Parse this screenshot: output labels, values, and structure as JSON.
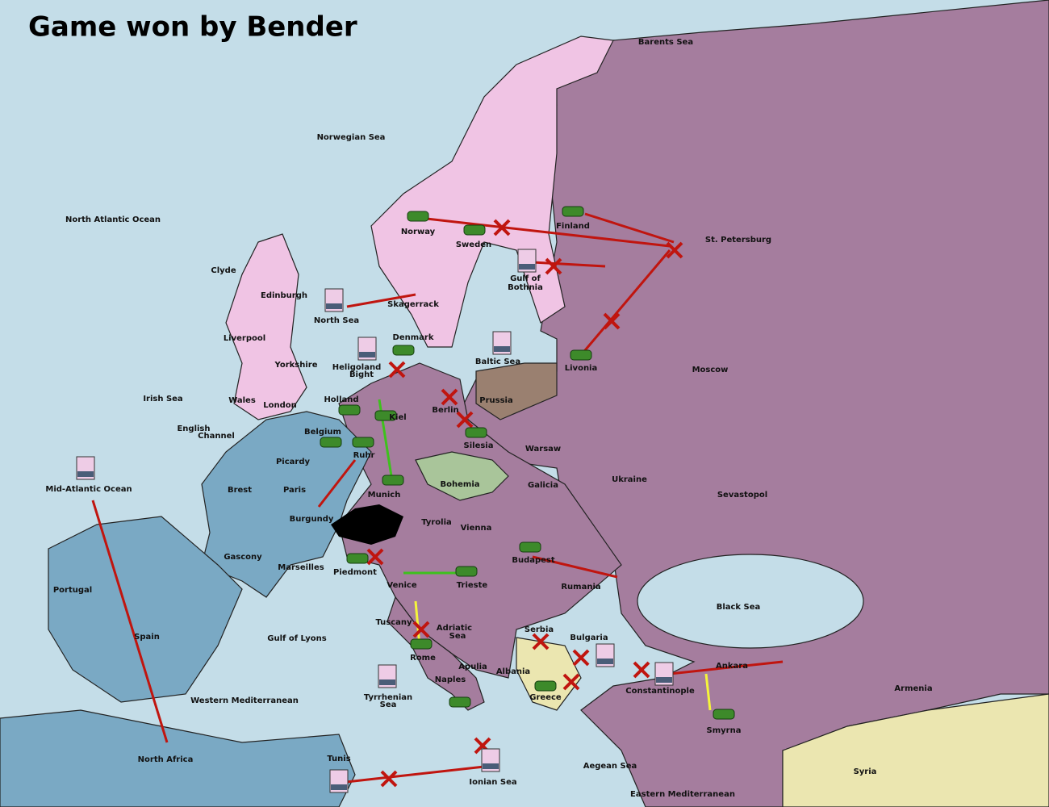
{
  "header": {
    "title": "Game won by Bender"
  },
  "provinces": [
    "Barents Sea",
    "Norwegian Sea",
    "North Atlantic Ocean",
    "Norway",
    "Sweden",
    "Finland",
    "St. Petersburg",
    "Gulf of",
    "Bothnia",
    "Clyde",
    "Edinburgh",
    "Skagerrack",
    "North Sea",
    "Liverpool",
    "Denmark",
    "Yorkshire",
    "Heligoland",
    "Bight",
    "Baltic Sea",
    "Livonia",
    "Moscow",
    "Irish Sea",
    "Holland",
    "Wales",
    "Kiel",
    "Prussia",
    "London",
    "Berlin",
    "English",
    "Channel",
    "Belgium",
    "Silesia",
    "Warsaw",
    "Picardy",
    "Ruhr",
    "Ukraine",
    "Mid-Atlantic Ocean",
    "Brest",
    "Paris",
    "Bohemia",
    "Galicia",
    "Sevastopol",
    "Munich",
    "Burgundy",
    "Tyrolia",
    "Vienna",
    "Budapest",
    "Gascony",
    "Marseilles",
    "Piedmont",
    "Venice",
    "Trieste",
    "Rumania",
    "Portugal",
    "Black Sea",
    "Tuscany",
    "Serbia",
    "Adriatic",
    "Sea",
    "Bulgaria",
    "Spain",
    "Gulf of Lyons",
    "Rome",
    "Apulia",
    "Albania",
    "Ankara",
    "Naples",
    "Constantinople",
    "Armenia",
    "Greece",
    "Tyrrhenian",
    "Sea",
    "Western Mediterranean",
    "Smyrna",
    "North Africa",
    "Tunis",
    "Aegean Sea",
    "Syria",
    "Ionian Sea",
    "Eastern Mediterranean"
  ]
}
